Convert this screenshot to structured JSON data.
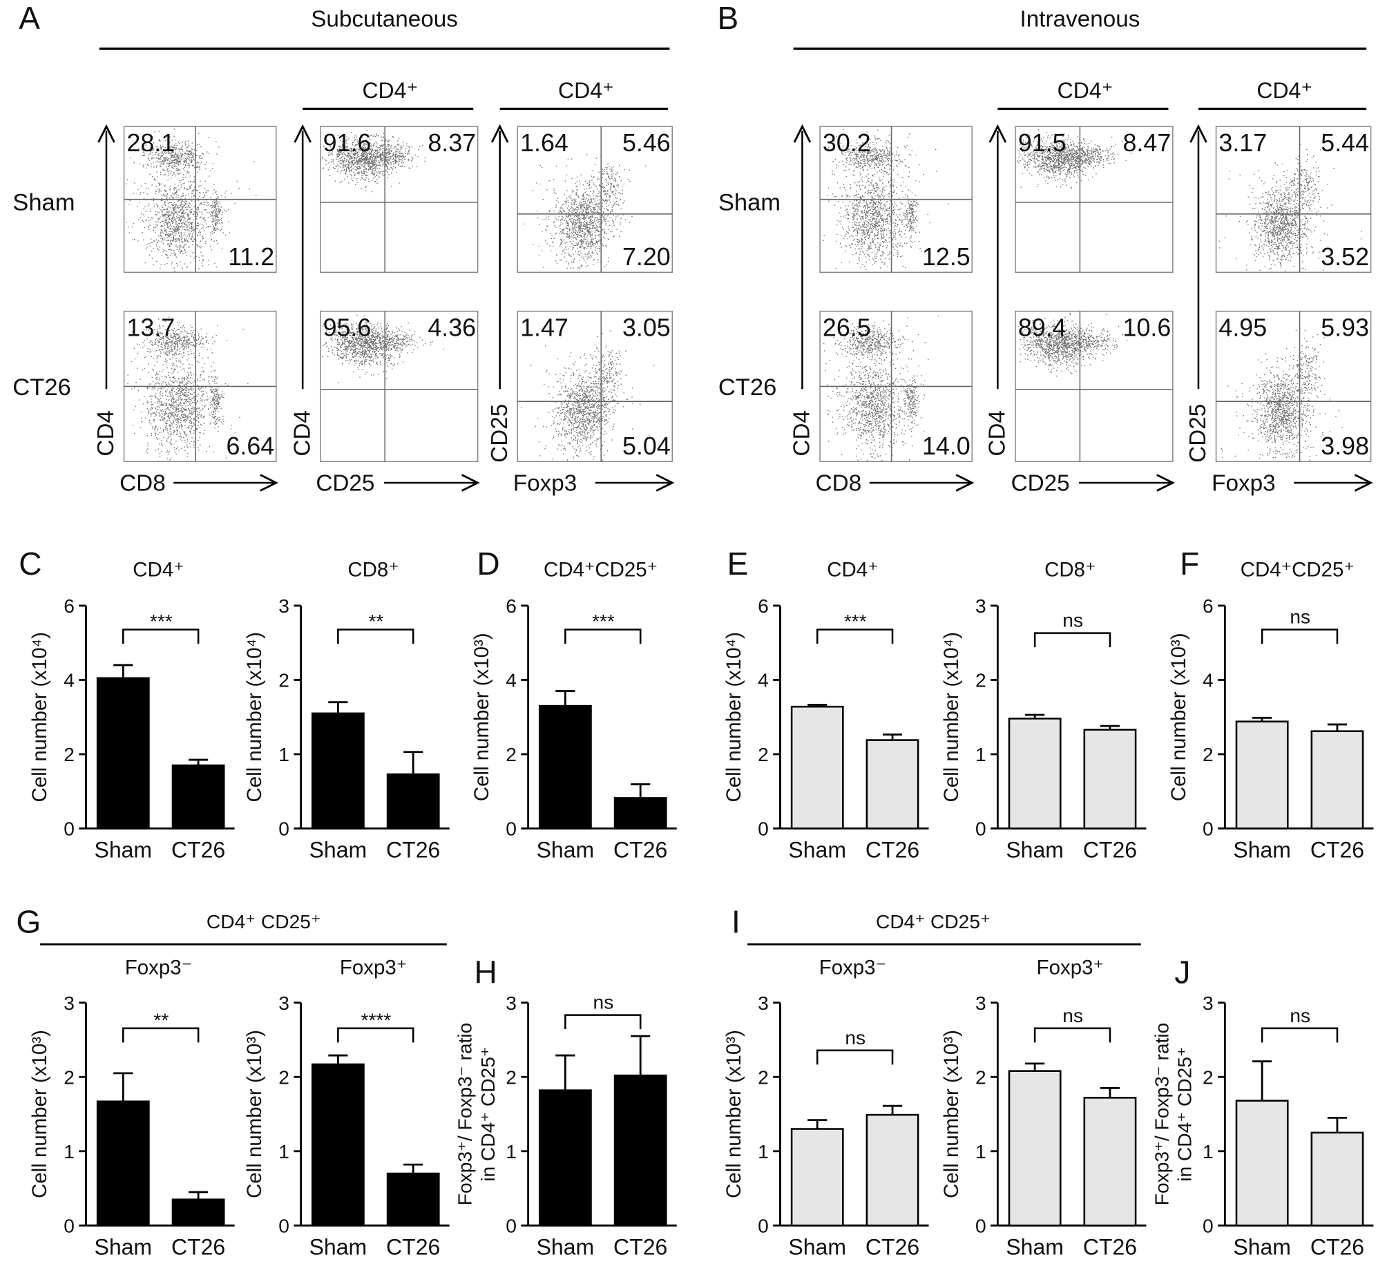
{
  "flow": [
    {
      "letter": "A",
      "title": "Subcutaneous",
      "row_labels": [
        "Sham",
        "CT26"
      ],
      "plots": [
        {
          "header": "",
          "xlabel": "CD8",
          "ylabel": "CD4",
          "kind": "cd4cd8",
          "quadrants": [
            {
              "ul": "28.1",
              "ur": "",
              "lr": "11.2"
            },
            {
              "ul": "13.7",
              "ur": "",
              "lr": "6.64"
            }
          ]
        },
        {
          "header": "CD4⁺",
          "xlabel": "CD25",
          "ylabel": "CD4",
          "kind": "cd4cd25",
          "quadrants": [
            {
              "ul": "91.6",
              "ur": "8.37",
              "lr": ""
            },
            {
              "ul": "95.6",
              "ur": "4.36",
              "lr": ""
            }
          ]
        },
        {
          "header": "CD4⁺",
          "xlabel": "Foxp3",
          "ylabel": "CD25",
          "kind": "cd25foxp3",
          "quadrants": [
            {
              "ul": "1.64",
              "ur": "5.46",
              "lr": "7.20"
            },
            {
              "ul": "1.47",
              "ur": "3.05",
              "lr": "5.04"
            }
          ]
        }
      ]
    },
    {
      "letter": "B",
      "title": "Intravenous",
      "row_labels": [
        "Sham",
        "CT26"
      ],
      "plots": [
        {
          "header": "",
          "xlabel": "CD8",
          "ylabel": "CD4",
          "kind": "cd4cd8",
          "quadrants": [
            {
              "ul": "30.2",
              "ur": "",
              "lr": "12.5"
            },
            {
              "ul": "26.5",
              "ur": "",
              "lr": "14.0"
            }
          ]
        },
        {
          "header": "CD4⁺",
          "xlabel": "CD25",
          "ylabel": "CD4",
          "kind": "cd4cd25",
          "quadrants": [
            {
              "ul": "91.5",
              "ur": "8.47",
              "lr": ""
            },
            {
              "ul": "89.4",
              "ur": "10.6",
              "lr": ""
            }
          ]
        },
        {
          "header": "CD4⁺",
          "xlabel": "Foxp3",
          "ylabel": "CD25",
          "kind": "cd25foxp3",
          "quadrants": [
            {
              "ul": "3.17",
              "ur": "5.44",
              "lr": "3.52"
            },
            {
              "ul": "4.95",
              "ur": "5.93",
              "lr": "3.98"
            }
          ]
        }
      ]
    }
  ],
  "group_headers": [
    {
      "letter": "G",
      "label": "CD4⁺ CD25⁺"
    },
    {
      "letter": "I",
      "label": "CD4⁺ CD25⁺"
    }
  ],
  "chart_data": [
    {
      "type": "bar",
      "panel": "C",
      "title": "CD4⁺",
      "ylabel": "Cell number (x10⁴)",
      "ylim": [
        0,
        6
      ],
      "yticks": [
        "0",
        "2",
        "4",
        "6"
      ],
      "categories": [
        "Sham",
        "CT26"
      ],
      "values": [
        4.05,
        1.7
      ],
      "errors": [
        0.35,
        0.15
      ],
      "significance": "***",
      "bar_color": "#000000"
    },
    {
      "type": "bar",
      "panel": "",
      "title": "CD8⁺",
      "ylabel": "Cell number (x10⁴)",
      "ylim": [
        0,
        3
      ],
      "yticks": [
        "0",
        "1",
        "2",
        "3"
      ],
      "categories": [
        "Sham",
        "CT26"
      ],
      "values": [
        1.55,
        0.73
      ],
      "errors": [
        0.15,
        0.3
      ],
      "significance": "**",
      "bar_color": "#000000"
    },
    {
      "type": "bar",
      "panel": "D",
      "title": "CD4⁺CD25⁺",
      "ylabel": "Cell number (x10³)",
      "ylim": [
        0,
        6
      ],
      "yticks": [
        "0",
        "2",
        "4",
        "6"
      ],
      "categories": [
        "Sham",
        "CT26"
      ],
      "values": [
        3.3,
        0.82
      ],
      "errors": [
        0.4,
        0.37
      ],
      "significance": "***",
      "bar_color": "#000000"
    },
    {
      "type": "bar",
      "panel": "E",
      "title": "CD4⁺",
      "ylabel": "Cell number (x10⁴)",
      "ylim": [
        0,
        6
      ],
      "yticks": [
        "0",
        "2",
        "4",
        "6"
      ],
      "categories": [
        "Sham",
        "CT26"
      ],
      "values": [
        3.28,
        2.38
      ],
      "errors": [
        0.05,
        0.15
      ],
      "significance": "***",
      "bar_color": "#e6e6e6"
    },
    {
      "type": "bar",
      "panel": "",
      "title": "CD8⁺",
      "ylabel": "Cell number (x10⁴)",
      "ylim": [
        0,
        3
      ],
      "yticks": [
        "0",
        "1",
        "2",
        "3"
      ],
      "categories": [
        "Sham",
        "CT26"
      ],
      "values": [
        1.48,
        1.33
      ],
      "errors": [
        0.05,
        0.05
      ],
      "significance": "ns",
      "bar_color": "#e6e6e6"
    },
    {
      "type": "bar",
      "panel": "F",
      "title": "CD4⁺CD25⁺",
      "ylabel": "Cell number (x10³)",
      "ylim": [
        0,
        6
      ],
      "yticks": [
        "0",
        "2",
        "4",
        "6"
      ],
      "categories": [
        "Sham",
        "CT26"
      ],
      "values": [
        2.88,
        2.62
      ],
      "errors": [
        0.1,
        0.18
      ],
      "significance": "ns",
      "bar_color": "#e6e6e6"
    },
    {
      "type": "bar",
      "panel": "",
      "title": "Foxp3⁻",
      "ylabel": "Cell number (x10³)",
      "ylim": [
        0,
        3
      ],
      "yticks": [
        "0",
        "1",
        "2",
        "3"
      ],
      "categories": [
        "Sham",
        "CT26"
      ],
      "values": [
        1.67,
        0.35
      ],
      "errors": [
        0.38,
        0.1
      ],
      "significance": "**",
      "bar_color": "#000000"
    },
    {
      "type": "bar",
      "panel": "",
      "title": "Foxp3⁺",
      "ylabel": "Cell number (x10³)",
      "ylim": [
        0,
        3
      ],
      "yticks": [
        "0",
        "1",
        "2",
        "3"
      ],
      "categories": [
        "Sham",
        "CT26"
      ],
      "values": [
        2.17,
        0.7
      ],
      "errors": [
        0.12,
        0.12
      ],
      "significance": "****",
      "bar_color": "#000000"
    },
    {
      "type": "bar",
      "panel": "H",
      "title": "",
      "ylabel": [
        "Foxp3⁺/ Foxp3⁻ ratio",
        "in CD4⁺ CD25⁺"
      ],
      "ylim": [
        0,
        3
      ],
      "yticks": [
        "0",
        "1",
        "2",
        "3"
      ],
      "categories": [
        "Sham",
        "CT26"
      ],
      "values": [
        1.82,
        2.02
      ],
      "errors": [
        0.47,
        0.53
      ],
      "significance": "ns",
      "bar_color": "#000000"
    },
    {
      "type": "bar",
      "panel": "",
      "title": "Foxp3⁻",
      "ylabel": "Cell number (x10³)",
      "ylim": [
        0,
        3
      ],
      "yticks": [
        "0",
        "1",
        "2",
        "3"
      ],
      "categories": [
        "Sham",
        "CT26"
      ],
      "values": [
        1.3,
        1.49
      ],
      "errors": [
        0.12,
        0.12
      ],
      "significance": "ns",
      "bar_color": "#e6e6e6"
    },
    {
      "type": "bar",
      "panel": "",
      "title": "Foxp3⁺",
      "ylabel": "Cell number (x10³)",
      "ylim": [
        0,
        3
      ],
      "yticks": [
        "0",
        "1",
        "2",
        "3"
      ],
      "categories": [
        "Sham",
        "CT26"
      ],
      "values": [
        2.08,
        1.72
      ],
      "errors": [
        0.1,
        0.13
      ],
      "significance": "ns",
      "bar_color": "#e6e6e6"
    },
    {
      "type": "bar",
      "panel": "J",
      "title": "",
      "ylabel": [
        "Foxp3⁺/ Foxp3⁻ ratio",
        "in CD4⁺ CD25⁺"
      ],
      "ylim": [
        0,
        3
      ],
      "yticks": [
        "0",
        "1",
        "2",
        "3"
      ],
      "categories": [
        "Sham",
        "CT26"
      ],
      "values": [
        1.68,
        1.25
      ],
      "errors": [
        0.53,
        0.2
      ],
      "significance": "ns",
      "bar_color": "#e6e6e6"
    }
  ]
}
